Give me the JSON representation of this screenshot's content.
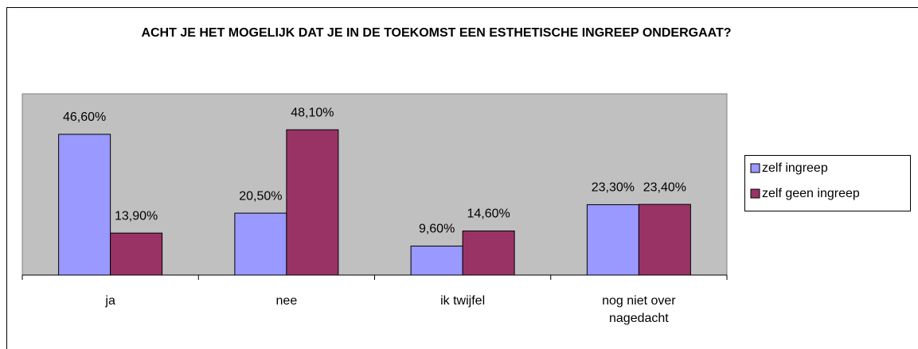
{
  "chart_data": {
    "type": "bar",
    "title": "ACHT JE HET MOGELIJK DAT JE IN DE TOEKOMST EEN ESTHETISCHE INGREEP ONDERGAAT?",
    "categories": [
      "ja",
      "nee",
      "ik twijfel",
      "nog niet over nagedacht"
    ],
    "series": [
      {
        "name": "zelf ingreep",
        "color": "#9999ff",
        "values": [
          46.6,
          20.5,
          9.6,
          23.3
        ],
        "value_labels": [
          "46,60%",
          "20,50%",
          "9,60%",
          "23,30%"
        ]
      },
      {
        "name": "zelf geen ingreep",
        "color": "#993366",
        "values": [
          13.9,
          48.1,
          14.6,
          23.4
        ],
        "value_labels": [
          "13,90%",
          "48,10%",
          "14,60%",
          "23,40%"
        ]
      }
    ],
    "ylim": [
      0,
      60
    ],
    "legend": "right"
  }
}
